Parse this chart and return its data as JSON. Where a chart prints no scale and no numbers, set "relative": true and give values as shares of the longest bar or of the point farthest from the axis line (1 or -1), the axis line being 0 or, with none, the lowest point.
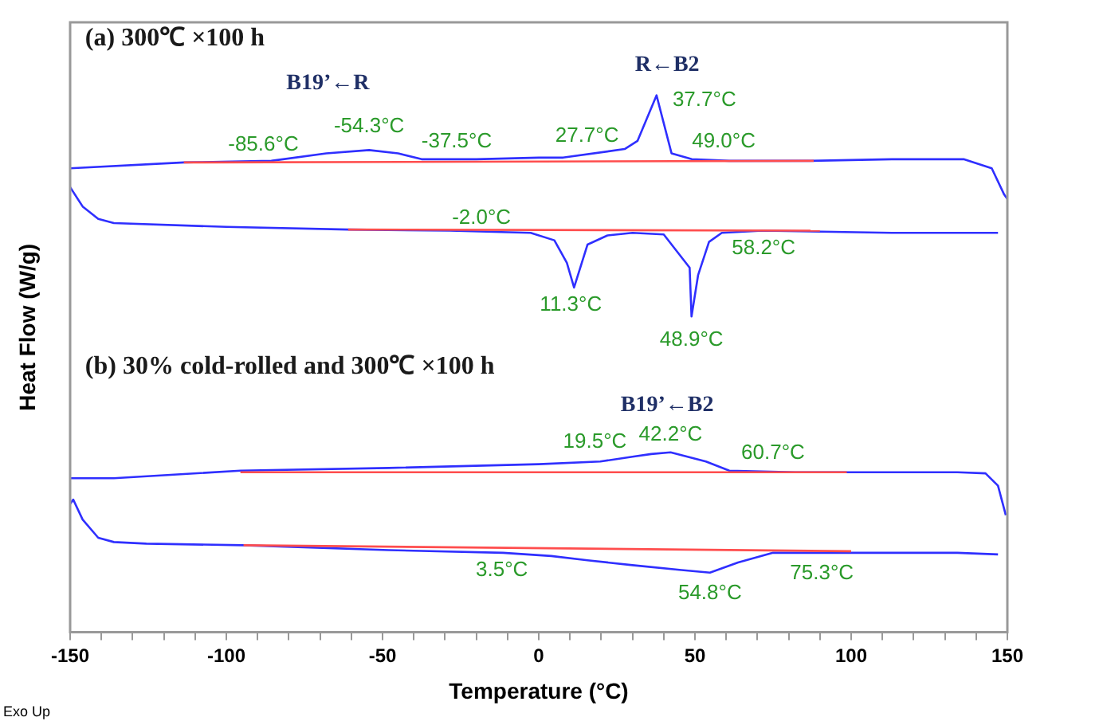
{
  "chart_data": {
    "type": "line",
    "relative": true,
    "xlabel": "Temperature (°C)",
    "ylabel": "Heat Flow (W/g)",
    "xlim": [
      -150,
      150
    ],
    "xticks": [
      -150,
      {
        "value": -140,
        "label": null
      },
      {
        "value": -130,
        "label": null
      },
      {
        "value": -120,
        "label": null
      },
      {
        "value": -110,
        "label": null
      },
      -100,
      {
        "value": -90,
        "label": null
      },
      {
        "value": -80,
        "label": null
      },
      {
        "value": -70,
        "label": null
      },
      {
        "value": -60,
        "label": null
      },
      -50,
      {
        "value": -40,
        "label": null
      },
      {
        "value": -30,
        "label": null
      },
      {
        "value": -20,
        "label": null
      },
      {
        "value": -10,
        "label": null
      },
      0,
      {
        "value": 10,
        "label": null
      },
      {
        "value": 20,
        "label": null
      },
      {
        "value": 30,
        "label": null
      },
      {
        "value": 40,
        "label": null
      },
      50,
      {
        "value": 60,
        "label": null
      },
      {
        "value": 70,
        "label": null
      },
      {
        "value": 80,
        "label": null
      },
      {
        "value": 90,
        "label": null
      },
      100,
      {
        "value": 110,
        "label": null
      },
      {
        "value": 120,
        "label": null
      },
      {
        "value": 130,
        "label": null
      },
      {
        "value": 140,
        "label": null
      },
      150
    ],
    "grid": false,
    "legend": false,
    "marker": "none",
    "line_style": "solid",
    "series": [
      {
        "color": "#ff4d4d",
        "x": [
          -113.6,
          88
        ],
        "values": [
          0.875,
          0.878
        ]
      },
      {
        "color": "#ff4d4d",
        "x": [
          -61,
          90
        ],
        "values": [
          0.75,
          0.748
        ]
      },
      {
        "color": "#ff4d4d",
        "x": [
          -95.5,
          98.6
        ],
        "values": [
          0.298,
          0.298
        ]
      },
      {
        "color": "#ff4d4d",
        "x": [
          -94.5,
          100
        ],
        "values": [
          0.162,
          0.151
        ]
      },
      {
        "color": "#2f2fff",
        "x": [
          -150,
          -113.6,
          -85.6,
          -68,
          -54.3,
          -45,
          -37.5,
          -20,
          0,
          7.8,
          27.5,
          31.6,
          37.7,
          42.5,
          49,
          61,
          87,
          113,
          136,
          145,
          149,
          150
        ],
        "values": [
          0.864,
          0.875,
          0.878,
          0.892,
          0.898,
          0.892,
          0.881,
          0.881,
          0.884,
          0.884,
          0.9,
          0.915,
          1.0,
          0.892,
          0.881,
          0.878,
          0.878,
          0.881,
          0.881,
          0.864,
          0.815,
          0.807
        ]
      },
      {
        "color": "#2f2fff",
        "x": [
          -150,
          -146,
          -141,
          -136,
          -100,
          -61,
          -28.5,
          -2.6,
          5,
          9,
          11.3,
          15.6,
          22,
          30,
          40,
          48.3,
          48.9,
          51,
          54.5,
          58.6,
          71.6,
          113,
          147
        ],
        "values": [
          0.829,
          0.793,
          0.77,
          0.762,
          0.755,
          0.75,
          0.748,
          0.744,
          0.73,
          0.688,
          0.642,
          0.722,
          0.739,
          0.744,
          0.741,
          0.679,
          0.588,
          0.665,
          0.727,
          0.744,
          0.748,
          0.744,
          0.744
        ]
      },
      {
        "color": "#2f2fff",
        "x": [
          -150,
          -136,
          -95.5,
          -48,
          0,
          19.7,
          30,
          36,
          42.2,
          53.5,
          61,
          82,
          97.6,
          134,
          143,
          147,
          149.5
        ],
        "values": [
          0.287,
          0.287,
          0.301,
          0.306,
          0.313,
          0.318,
          0.327,
          0.332,
          0.335,
          0.318,
          0.301,
          0.298,
          0.298,
          0.298,
          0.296,
          0.273,
          0.218
        ]
      },
      {
        "color": "#2f2fff",
        "x": [
          -150,
          -149,
          -146,
          -141,
          -136,
          -125.6,
          -94.5,
          -48,
          -11.4,
          4,
          15.6,
          30,
          45.7,
          54.8,
          63.8,
          75,
          92,
          134,
          147
        ],
        "values": [
          0.239,
          0.247,
          0.21,
          0.176,
          0.168,
          0.165,
          0.162,
          0.153,
          0.148,
          0.142,
          0.134,
          0.125,
          0.116,
          0.111,
          0.13,
          0.148,
          0.148,
          0.148,
          0.145
        ]
      }
    ],
    "annotations": [
      "(a) 300℃ ×100 h",
      "B19’←R",
      "R←B2",
      "(b) 30% cold-rolled and 300℃ ×100 h",
      "B19’←B2",
      "Exo Up",
      {
        "text": "-85.6°C",
        "x": -85.6,
        "y": 0.878
      },
      {
        "text": "-54.3°C",
        "x": -54.3,
        "y": 0.898
      },
      {
        "text": "-37.5°C",
        "x": -37.5,
        "y": 0.881
      },
      {
        "text": "27.7°C",
        "x": 27.7,
        "y": 0.9
      },
      {
        "text": "37.7°C",
        "x": 37.7,
        "y": 1.0
      },
      {
        "text": "49.0°C",
        "x": 49.0,
        "y": 0.881
      },
      {
        "text": "-2.0°C",
        "x": -2.0,
        "y": 0.744
      },
      {
        "text": "11.3°C",
        "x": 11.3,
        "y": 0.642
      },
      {
        "text": "48.9°C",
        "x": 48.9,
        "y": 0.588
      },
      {
        "text": "58.2°C",
        "x": 58.2,
        "y": 0.744
      },
      {
        "text": "19.5°C",
        "x": 19.5,
        "y": 0.318
      },
      {
        "text": "42.2°C",
        "x": 42.2,
        "y": 0.335
      },
      {
        "text": "60.7°C",
        "x": 60.7,
        "y": 0.301
      },
      {
        "text": "3.5°C",
        "x": 3.5,
        "y": 0.142
      },
      {
        "text": "54.8°C",
        "x": 54.8,
        "y": 0.111
      },
      {
        "text": "75.3°C",
        "x": 75.3,
        "y": 0.148
      }
    ]
  }
}
